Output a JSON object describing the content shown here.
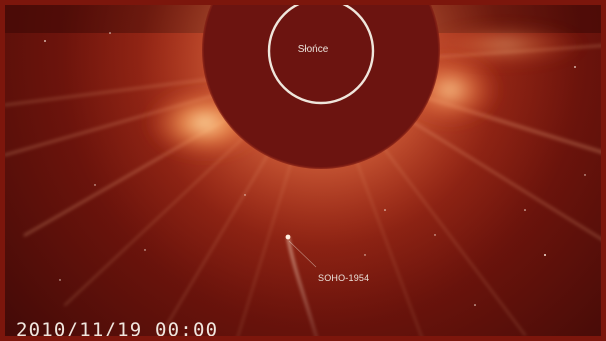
{
  "image": {
    "sun_label": "Słońce",
    "comet_label": "SOHO-1954",
    "timestamp": "2010/11/19 00:00"
  },
  "colors": {
    "frame": "#7c160c",
    "occulter": "#6c1410",
    "corona_glow": "#ffb070",
    "sun_ring": "#efe6dc",
    "text": "#ece4dc"
  }
}
